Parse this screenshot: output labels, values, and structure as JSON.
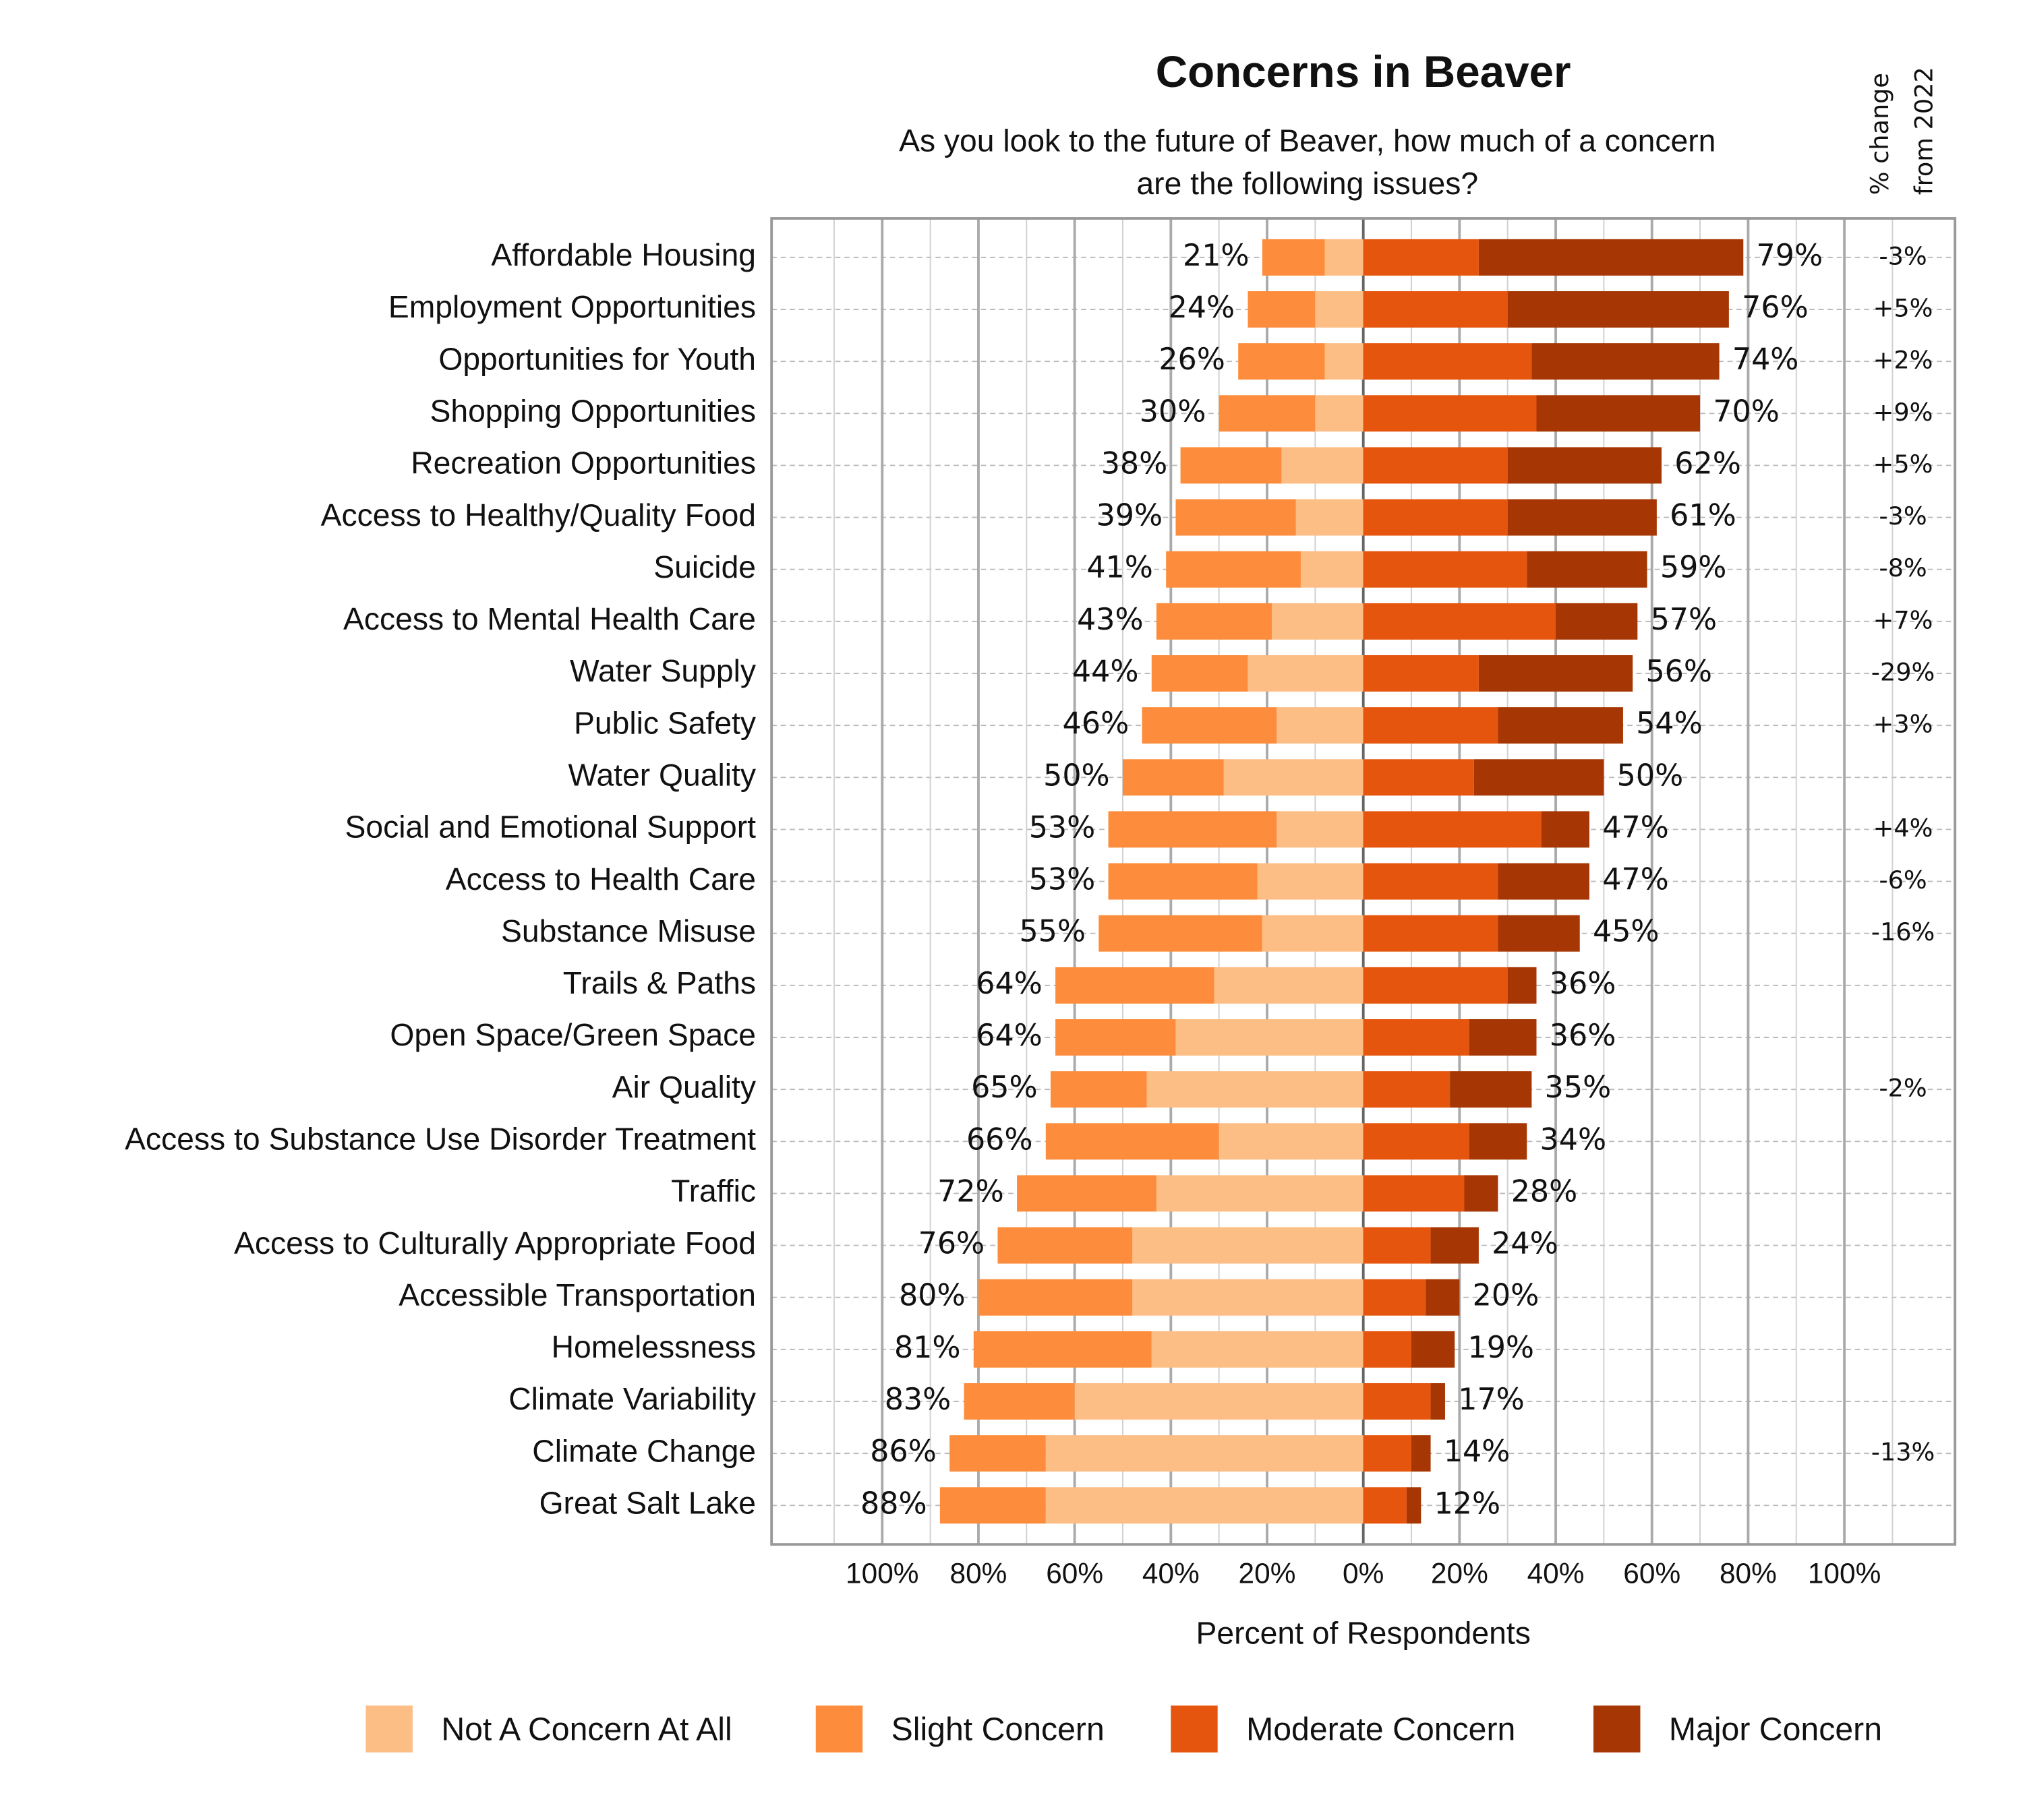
{
  "chart_data": {
    "type": "diverging_bar",
    "title": "Concerns in Beaver",
    "subtitle": [
      "As you look to the future of Beaver, how much of a concern",
      "are the following issues?"
    ],
    "change_header": [
      "% change",
      "from 2022"
    ],
    "x_label": "Percent of Respondents",
    "categories": [
      "Affordable Housing",
      "Employment Opportunities",
      "Opportunities for Youth",
      "Shopping Opportunities",
      "Recreation Opportunities",
      "Access to Healthy/Quality Food",
      "Suicide",
      "Access to Mental Health Care",
      "Water Supply",
      "Public Safety",
      "Water Quality",
      "Social and Emotional Support",
      "Access to Health Care",
      "Substance Misuse",
      "Trails & Paths",
      "Open Space/Green Space",
      "Air Quality",
      "Access to Substance Use Disorder Treatment",
      "Traffic",
      "Access to Culturally Appropriate Food",
      "Accessible Transportation",
      "Homelessness",
      "Climate Variability",
      "Climate Change",
      "Great Salt Lake"
    ],
    "series": [
      {
        "name": "Not A Concern At All",
        "color": "#fdbe85",
        "side": "left",
        "values": [
          8,
          10,
          8,
          10,
          17,
          14,
          13,
          19,
          24,
          18,
          29,
          18,
          22,
          21,
          31,
          39,
          45,
          30,
          43,
          48,
          48,
          44,
          60,
          66,
          66
        ]
      },
      {
        "name": "Slight Concern",
        "color": "#fd8d3c",
        "side": "left",
        "values": [
          13,
          14,
          18,
          20,
          21,
          25,
          28,
          24,
          20,
          28,
          21,
          35,
          31,
          34,
          33,
          25,
          20,
          36,
          29,
          28,
          32,
          37,
          23,
          20,
          22
        ]
      },
      {
        "name": "Moderate Concern",
        "color": "#e6550d",
        "side": "right",
        "values": [
          24,
          30,
          35,
          36,
          30,
          30,
          34,
          40,
          24,
          28,
          23,
          37,
          28,
          28,
          30,
          22,
          18,
          22,
          21,
          14,
          13,
          10,
          14,
          10,
          9
        ]
      },
      {
        "name": "Major Concern",
        "color": "#a63603",
        "side": "right",
        "values": [
          55,
          46,
          39,
          34,
          32,
          31,
          25,
          17,
          32,
          26,
          27,
          10,
          19,
          17,
          6,
          14,
          17,
          12,
          7,
          10,
          7,
          9,
          3,
          4,
          3
        ]
      }
    ],
    "left_totals": [
      21,
      24,
      26,
      30,
      38,
      39,
      41,
      43,
      44,
      46,
      50,
      53,
      53,
      55,
      64,
      64,
      65,
      66,
      72,
      76,
      80,
      81,
      83,
      86,
      88
    ],
    "left_total_labels": [
      "21%",
      "24%",
      "26%",
      "30%",
      "38%",
      "39%",
      "41%",
      "43%",
      "44%",
      "46%",
      "50%",
      "53%",
      "53%",
      "55%",
      "64%",
      "64%",
      "65%",
      "66%",
      "72%",
      "76%",
      "80%",
      "81%",
      "83%",
      "86%",
      "88%"
    ],
    "right_totals": [
      79,
      76,
      74,
      70,
      62,
      61,
      59,
      57,
      56,
      54,
      50,
      47,
      47,
      45,
      36,
      36,
      35,
      34,
      28,
      24,
      20,
      19,
      17,
      14,
      12
    ],
    "right_total_labels": [
      "79%",
      "76%",
      "74%",
      "70%",
      "62%",
      "61%",
      "59%",
      "57%",
      "56%",
      "54%",
      "50%",
      "47%",
      "47%",
      "45%",
      "36%",
      "36%",
      "35%",
      "34%",
      "28%",
      "24%",
      "20%",
      "19%",
      "17%",
      "14%",
      "12%"
    ],
    "change_from_2022": [
      -3,
      5,
      2,
      9,
      5,
      -3,
      -8,
      7,
      -29,
      3,
      null,
      4,
      -6,
      -16,
      null,
      null,
      -2,
      null,
      null,
      null,
      null,
      null,
      null,
      -13,
      null
    ],
    "change_labels": [
      "-3%",
      "+5%",
      "+2%",
      "+9%",
      "+5%",
      "-3%",
      "-8%",
      "+7%",
      "-29%",
      "+3%",
      null,
      "+4%",
      "-6%",
      "-16%",
      null,
      null,
      "-2%",
      null,
      null,
      null,
      null,
      null,
      null,
      "-13%",
      null
    ],
    "change_up_color": "#8b1a1a",
    "change_down_color": "#1a1a99",
    "xlim": [
      -123,
      123
    ],
    "xticks": [
      {
        "value": -100,
        "label": "100%"
      },
      {
        "value": -80,
        "label": "80%"
      },
      {
        "value": -60,
        "label": "60%"
      },
      {
        "value": -40,
        "label": "40%"
      },
      {
        "value": -20,
        "label": "20%"
      },
      {
        "value": 0,
        "label": "0%"
      },
      {
        "value": 20,
        "label": "20%"
      },
      {
        "value": 40,
        "label": "40%"
      },
      {
        "value": 60,
        "label": "60%"
      },
      {
        "value": 80,
        "label": "80%"
      },
      {
        "value": 100,
        "label": "100%"
      }
    ],
    "xticks_minor": [
      -110,
      -90,
      -70,
      -50,
      -30,
      -10,
      10,
      30,
      50,
      70,
      90,
      110
    ],
    "grid": true
  }
}
